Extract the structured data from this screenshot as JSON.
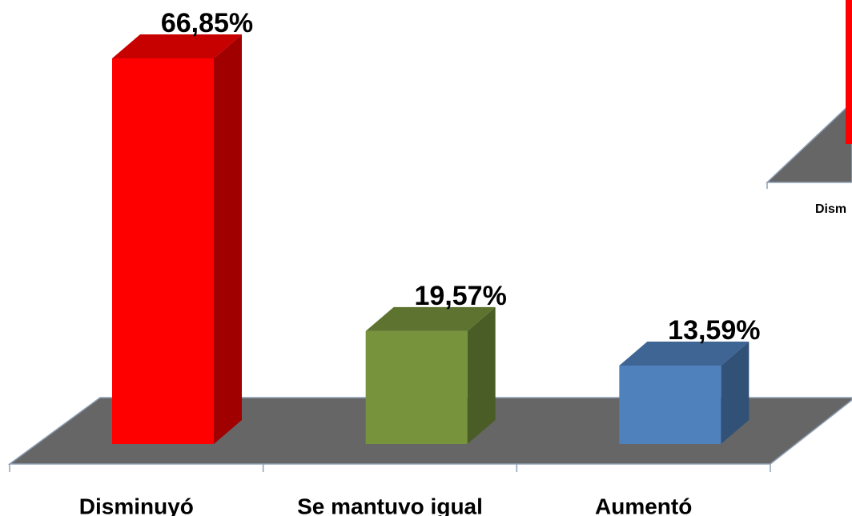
{
  "chart_data": {
    "type": "bar3d",
    "categories": [
      "Disminuyó",
      "Se mantuvo igual",
      "Aumentó"
    ],
    "values": [
      66.85,
      19.57,
      13.59
    ],
    "value_labels": [
      "66,85%",
      "19,57%",
      "13,59%"
    ],
    "colors": [
      "#ff0000",
      "#77933c",
      "#4f81bd"
    ],
    "fragment_label": "Dism"
  }
}
